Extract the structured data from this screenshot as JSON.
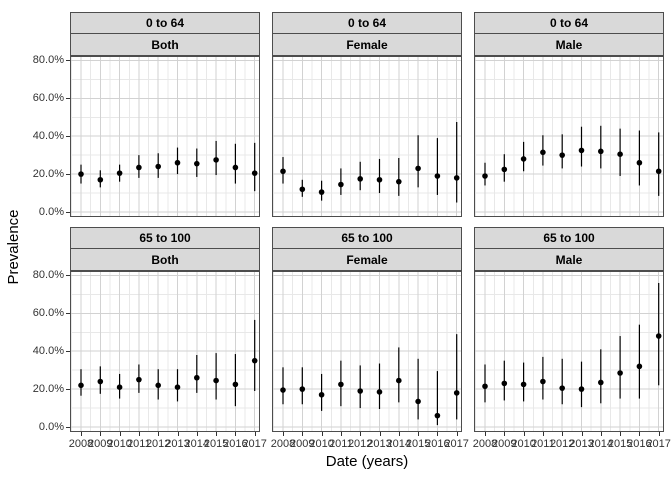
{
  "chart_data": {
    "type": "scatter",
    "subtype": "pointrange-with-error-bars",
    "title": "",
    "xlabel": "Date (years)",
    "ylabel": "Prevalence",
    "x": [
      2008,
      2009,
      2010,
      2011,
      2012,
      2013,
      2014,
      2015,
      2016,
      2017
    ],
    "x_tick_labels": [
      "2008",
      "2009",
      "2010",
      "2011",
      "2012",
      "2013",
      "2014",
      "2015",
      "2016",
      "2017"
    ],
    "y_tick_labels": [
      "0.0%",
      "20.0%",
      "40.0%",
      "60.0%",
      "80.0%"
    ],
    "y_tick_values": [
      0,
      20,
      40,
      60,
      80
    ],
    "ylim": [
      0,
      85
    ],
    "grid": true,
    "legend": false,
    "facet_row_labels": [
      "0 to 64",
      "65 to 100"
    ],
    "facet_col_labels": [
      "Both",
      "Female",
      "Male"
    ],
    "units": "percent",
    "facets": [
      {
        "age": "0 to 64",
        "sex": "Both",
        "estimate": [
          20,
          17,
          20.5,
          23.5,
          24,
          26,
          25.5,
          27.5,
          23.5,
          20.5
        ],
        "ci_low": [
          15,
          13,
          16,
          18,
          18,
          20,
          18.5,
          19.5,
          15,
          11
        ],
        "ci_high": [
          25,
          22,
          25,
          30,
          31,
          34,
          33.5,
          37.5,
          36,
          36.5
        ]
      },
      {
        "age": "0 to 64",
        "sex": "Female",
        "estimate": [
          21.5,
          12,
          10.5,
          14.5,
          17.5,
          17,
          16,
          23,
          19,
          18
        ],
        "ci_low": [
          15,
          8,
          6,
          9,
          11.5,
          10,
          8.5,
          13,
          9,
          5
        ],
        "ci_high": [
          29,
          17,
          16.5,
          23,
          26.5,
          28,
          28.5,
          40.5,
          39,
          47.5
        ]
      },
      {
        "age": "0 to 64",
        "sex": "Male",
        "estimate": [
          19,
          22.5,
          28,
          31.5,
          30,
          32.5,
          32,
          30.5,
          26,
          21.5
        ],
        "ci_low": [
          14,
          16,
          21.5,
          24.5,
          23,
          24,
          23,
          19,
          14,
          8.5
        ],
        "ci_high": [
          26,
          30.5,
          37,
          40.5,
          41,
          45,
          45.5,
          44,
          43,
          42
        ]
      },
      {
        "age": "65 to 100",
        "sex": "Both",
        "estimate": [
          22,
          24,
          21,
          25,
          22,
          21,
          26,
          24.5,
          22.5,
          35
        ],
        "ci_low": [
          16.5,
          17.5,
          15,
          18,
          14.5,
          13.5,
          18,
          14.5,
          11,
          19
        ],
        "ci_high": [
          30.5,
          32,
          28,
          33,
          30.5,
          30.5,
          38,
          39,
          38.5,
          56.5
        ]
      },
      {
        "age": "65 to 100",
        "sex": "Female",
        "estimate": [
          19.5,
          20,
          17,
          22.5,
          19,
          18.5,
          24.5,
          13.5,
          6,
          18
        ],
        "ci_low": [
          12,
          12,
          8.5,
          11,
          10,
          9.5,
          13,
          4,
          1,
          4
        ],
        "ci_high": [
          31.5,
          31.5,
          28,
          35,
          32.5,
          33.5,
          42,
          36,
          29.5,
          49
        ]
      },
      {
        "age": "65 to 100",
        "sex": "Male",
        "estimate": [
          21.5,
          23,
          22.5,
          24,
          20.5,
          20,
          23.5,
          28.5,
          32,
          48
        ],
        "ci_low": [
          13,
          14,
          13.5,
          14.5,
          12,
          10.5,
          12.5,
          15,
          15,
          22
        ],
        "ci_high": [
          33,
          35,
          34,
          37,
          36,
          34.5,
          41,
          48,
          54,
          76
        ]
      }
    ],
    "colors": {
      "point": "#000000",
      "error_bar": "#000000",
      "strip_fill": "#d9d9d9",
      "panel_border": "#4d4d4d",
      "grid_major": "#d2d2d2",
      "grid_minor": "#e8e8e8",
      "tick_label": "#333333",
      "background": "#ffffff"
    }
  }
}
